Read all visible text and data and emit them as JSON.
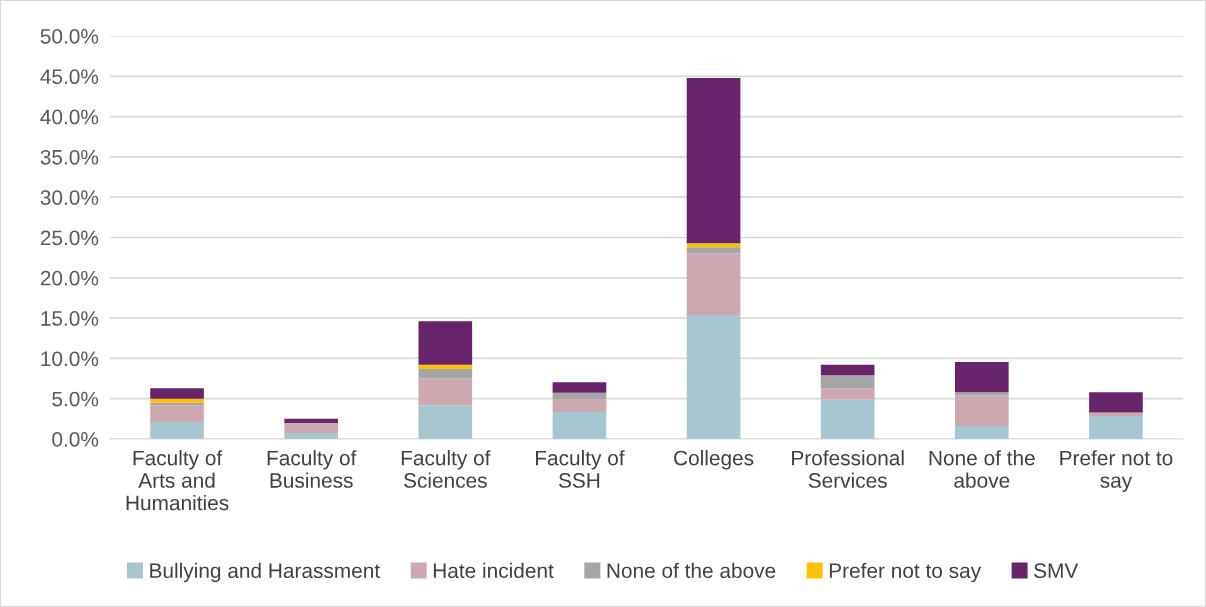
{
  "chart_data": {
    "type": "bar",
    "stacked": true,
    "categories": [
      "Faculty of\nArts and\nHumanities",
      "Faculty of\nBusiness",
      "Faculty of\nSciences",
      "Faculty of\nSSH",
      "Colleges",
      "Professional\nServices",
      "None of the\nabove",
      "Prefer not to\nsay"
    ],
    "series": [
      {
        "name": "Bullying and Harassment",
        "color": "#a7c7d0",
        "values": [
          2.1,
          0.75,
          4.2,
          3.35,
          15.4,
          4.9,
          1.6,
          2.85
        ]
      },
      {
        "name": "Hate incident",
        "color": "#cca8b0",
        "values": [
          2.1,
          1.25,
          3.3,
          1.6,
          7.6,
          1.35,
          3.8,
          0.45
        ]
      },
      {
        "name": "None of the above",
        "color": "#a5a5a5",
        "values": [
          0.3,
          0,
          1.2,
          0.8,
          0.8,
          1.65,
          0.4,
          0
        ]
      },
      {
        "name": "Prefer not to say",
        "color": "#ffc000",
        "values": [
          0.5,
          0,
          0.5,
          0,
          0.5,
          0,
          0,
          0
        ]
      },
      {
        "name": "SMV",
        "color": "#68246b",
        "values": [
          1.3,
          0.5,
          5.4,
          1.3,
          20.5,
          1.3,
          3.75,
          2.5
        ]
      }
    ],
    "ylim": [
      0,
      50
    ],
    "yticks": [
      {
        "value": 0,
        "label": "0.0%"
      },
      {
        "value": 5,
        "label": "5.0%"
      },
      {
        "value": 10,
        "label": "10.0%"
      },
      {
        "value": 15,
        "label": "15.0%"
      },
      {
        "value": 20,
        "label": "20.0%"
      },
      {
        "value": 25,
        "label": "25.0%"
      },
      {
        "value": 30,
        "label": "30.0%"
      },
      {
        "value": 35,
        "label": "35.0%"
      },
      {
        "value": 40,
        "label": "40.0%"
      },
      {
        "value": 45,
        "label": "45.0%"
      },
      {
        "value": 50,
        "label": "50.0%"
      }
    ],
    "grid": "y",
    "legend": "bottom"
  }
}
